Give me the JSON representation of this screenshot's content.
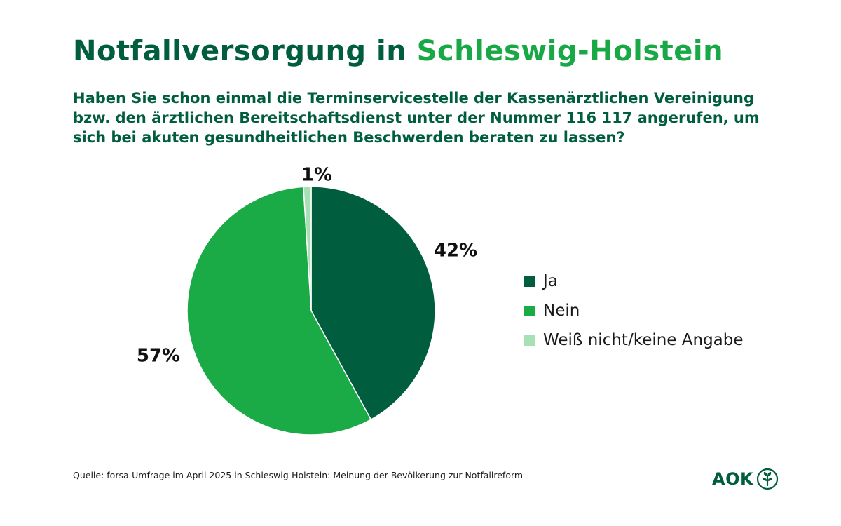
{
  "title": {
    "part1": "Notfallversorgung in",
    "part2": "Schleswig-Holstein"
  },
  "question": "Haben Sie schon einmal die Terminservicestelle der Kassenärztlichen Vereinigung bzw. den ärztlichen Bereitschaftsdienst unter der Nummer 116 117 angerufen, um sich bei akuten gesundheitlichen Beschwerden beraten zu lassen?",
  "chart_data": {
    "type": "pie",
    "title": "Notfallversorgung in Schleswig-Holstein",
    "categories": [
      "Ja",
      "Nein",
      "Weiß nicht/keine Angabe"
    ],
    "values": [
      42,
      57,
      1
    ],
    "labels": [
      "42%",
      "57%",
      "1%"
    ],
    "colors": [
      "#005e3f",
      "#1aab47",
      "#a8e0b5"
    ],
    "start": "12 o'clock, clockwise",
    "legend_position": "right"
  },
  "legend": {
    "items": [
      {
        "label": "Ja",
        "color": "#005e3f"
      },
      {
        "label": "Nein",
        "color": "#1aab47"
      },
      {
        "label": "Weiß nicht/keine Angabe",
        "color": "#a8e0b5"
      }
    ]
  },
  "source": "Quelle: forsa-Umfrage im April 2025 in Schleswig-Holstein: Meinung der Bevölkerung zur Notfallreform",
  "logo": {
    "text": "AOK",
    "color": "#005e3f"
  }
}
